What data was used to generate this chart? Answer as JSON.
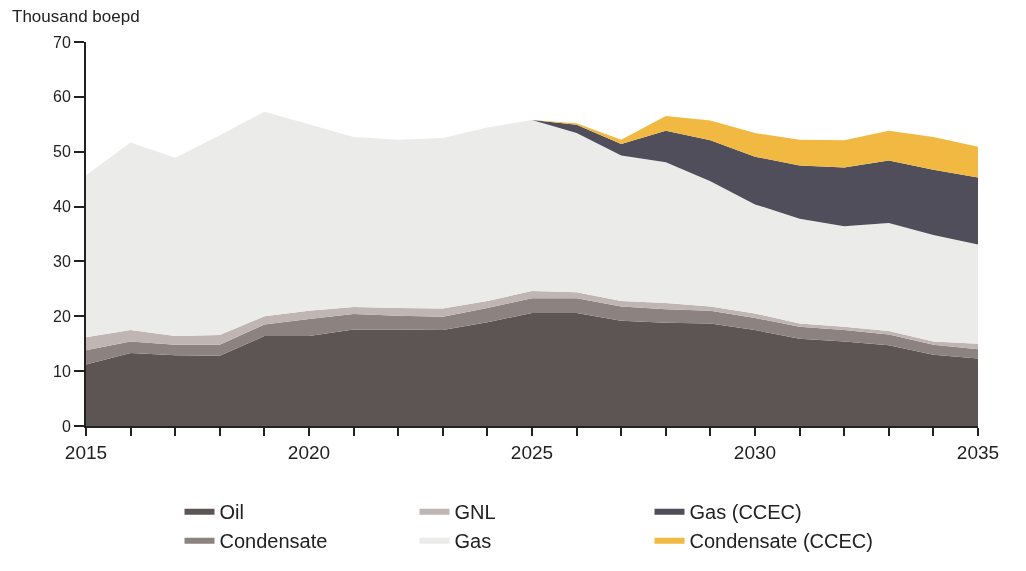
{
  "chart_data": {
    "type": "area",
    "stacked": true,
    "ylabel": "Thousand boepd",
    "x": [
      2015,
      2016,
      2017,
      2018,
      2019,
      2020,
      2021,
      2022,
      2023,
      2024,
      2025,
      2026,
      2027,
      2028,
      2029,
      2030,
      2031,
      2032,
      2033,
      2034,
      2035
    ],
    "series": [
      {
        "name": "Oil",
        "color": "#5d5553",
        "values": [
          11.2,
          13.3,
          12.9,
          12.8,
          16.4,
          16.4,
          17.6,
          17.6,
          17.5,
          18.9,
          20.6,
          20.6,
          19.2,
          18.8,
          18.7,
          17.5,
          15.9,
          15.4,
          14.7,
          13.0,
          12.3
        ]
      },
      {
        "name": "Condensate",
        "color": "#8c8280",
        "values": [
          2.6,
          2.1,
          1.9,
          2.0,
          2.1,
          3.1,
          2.8,
          2.5,
          2.4,
          2.6,
          2.7,
          2.7,
          2.6,
          2.5,
          2.3,
          2.2,
          2.2,
          2.1,
          2.0,
          1.8,
          1.7
        ]
      },
      {
        "name": "GNL",
        "color": "#bfb5b3",
        "values": [
          2.4,
          2.1,
          1.6,
          1.8,
          1.5,
          1.5,
          1.3,
          1.4,
          1.5,
          1.3,
          1.3,
          1.1,
          1.0,
          1.1,
          0.8,
          0.8,
          0.6,
          0.6,
          0.6,
          0.6,
          1.0
        ]
      },
      {
        "name": "Gas",
        "color": "#ebebea",
        "values": [
          29.5,
          34.2,
          32.5,
          36.4,
          37.3,
          34.0,
          31.0,
          30.7,
          31.1,
          31.6,
          31.2,
          29.0,
          26.5,
          25.7,
          22.8,
          19.9,
          19.1,
          18.3,
          19.7,
          19.4,
          18.1
        ]
      },
      {
        "name": "Gas (CCEC)",
        "color": "#4f4e5a",
        "values": [
          0,
          0,
          0,
          0,
          0,
          0,
          0,
          0,
          0,
          0,
          0,
          1.5,
          2.1,
          5.7,
          7.5,
          8.7,
          9.7,
          10.7,
          11.4,
          11.9,
          12.2
        ]
      },
      {
        "name": "Condensate (CCEC)",
        "color": "#f2b942",
        "values": [
          0,
          0,
          0,
          0,
          0,
          0,
          0,
          0,
          0,
          0,
          0,
          0.3,
          0.8,
          2.7,
          3.6,
          4.3,
          4.7,
          5.0,
          5.4,
          6.0,
          5.6
        ]
      }
    ],
    "xlim": [
      2015,
      2035
    ],
    "xticks": [
      2015,
      2020,
      2025,
      2030,
      2035
    ],
    "ylim": [
      0,
      70
    ],
    "yticks": [
      0,
      10,
      20,
      30,
      40,
      50,
      60,
      70
    ],
    "legend": "bottom"
  }
}
